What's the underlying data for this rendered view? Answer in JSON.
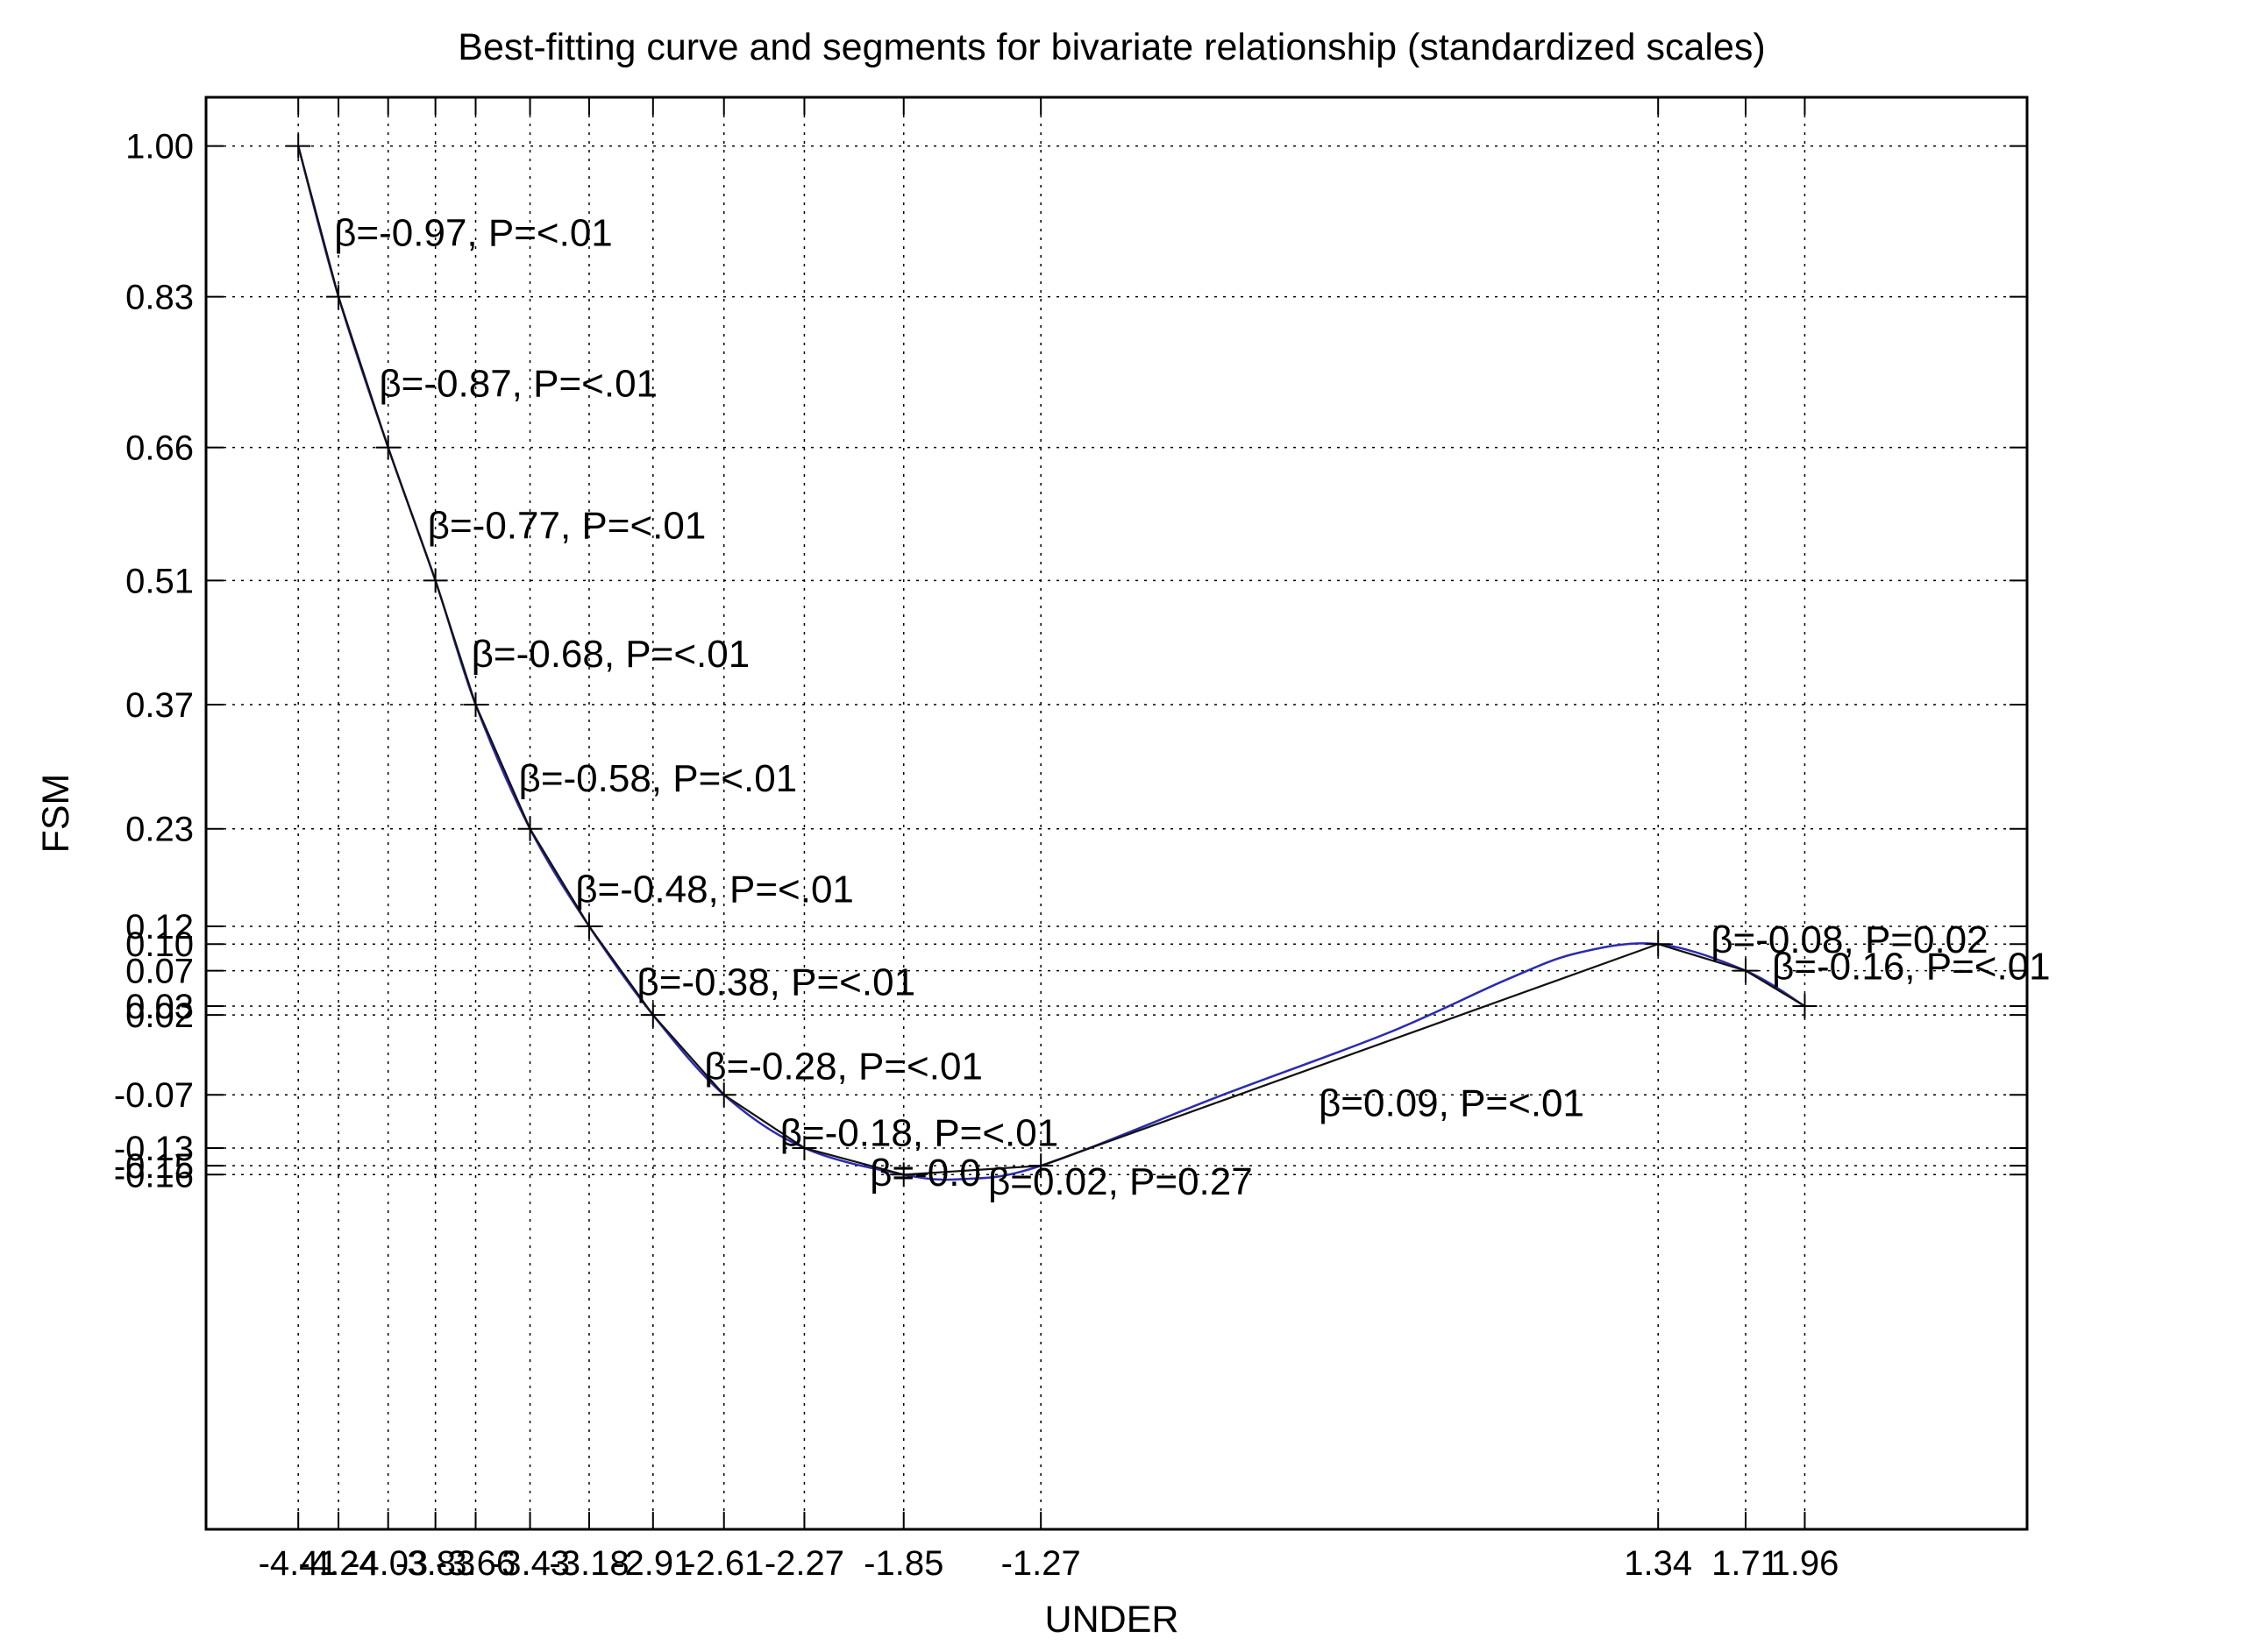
{
  "chart_data": {
    "type": "line",
    "title": "Best-fitting curve and segments for bivariate relationship (standardized scales)",
    "xlabel": "UNDER",
    "ylabel": "FSM",
    "xlim": [
      -4.8,
      2.9
    ],
    "ylim": [
      -0.56,
      1.055
    ],
    "grid": true,
    "x_tick_labels": [
      "-4.41",
      "-4.24",
      "-4.03",
      "-3.83",
      "-3.66",
      "-3.43",
      "-3.18",
      "-2.91",
      "-2.61",
      "-2.27",
      "-1.85",
      "-1.27",
      "1.34",
      "1.71",
      "1.96"
    ],
    "x_ticks": [
      -4.41,
      -4.24,
      -4.03,
      -3.83,
      -3.66,
      -3.43,
      -3.18,
      -2.91,
      -2.61,
      -2.27,
      -1.85,
      -1.27,
      1.34,
      1.71,
      1.96
    ],
    "y_tick_labels": [
      "1.00",
      "0.83",
      "0.66",
      "0.51",
      "0.37",
      "0.23",
      "0.12",
      "0.10",
      "0.07",
      "0.03",
      "0.02",
      "-0.07",
      "-0.13",
      "-0.15",
      "-0.16"
    ],
    "y_ticks": [
      1.0,
      0.83,
      0.66,
      0.51,
      0.37,
      0.23,
      0.12,
      0.1,
      0.07,
      0.03,
      0.02,
      -0.07,
      -0.13,
      -0.15,
      -0.16
    ],
    "knots": [
      {
        "x": -4.41,
        "y": 1.0
      },
      {
        "x": -4.24,
        "y": 0.83
      },
      {
        "x": -4.03,
        "y": 0.66
      },
      {
        "x": -3.83,
        "y": 0.51
      },
      {
        "x": -3.66,
        "y": 0.37
      },
      {
        "x": -3.43,
        "y": 0.23
      },
      {
        "x": -3.18,
        "y": 0.12
      },
      {
        "x": -2.91,
        "y": 0.02
      },
      {
        "x": -2.61,
        "y": -0.07
      },
      {
        "x": -2.27,
        "y": -0.13
      },
      {
        "x": -1.85,
        "y": -0.16
      },
      {
        "x": -1.27,
        "y": -0.15
      },
      {
        "x": 1.34,
        "y": 0.1
      },
      {
        "x": 1.71,
        "y": 0.07
      },
      {
        "x": 1.96,
        "y": 0.03
      }
    ],
    "curve": [
      {
        "x": -4.41,
        "y": 1.0
      },
      {
        "x": -4.24,
        "y": 0.83
      },
      {
        "x": -4.03,
        "y": 0.66
      },
      {
        "x": -3.83,
        "y": 0.51
      },
      {
        "x": -3.66,
        "y": 0.37
      },
      {
        "x": -3.43,
        "y": 0.23
      },
      {
        "x": -3.18,
        "y": 0.12
      },
      {
        "x": -2.91,
        "y": 0.02
      },
      {
        "x": -2.61,
        "y": -0.07
      },
      {
        "x": -2.27,
        "y": -0.13
      },
      {
        "x": -1.85,
        "y": -0.16
      },
      {
        "x": -1.6,
        "y": -0.165
      },
      {
        "x": -1.27,
        "y": -0.15
      },
      {
        "x": -0.5,
        "y": -0.07
      },
      {
        "x": 0.2,
        "y": 0.0
      },
      {
        "x": 0.7,
        "y": 0.06
      },
      {
        "x": 1.0,
        "y": 0.09
      },
      {
        "x": 1.34,
        "y": 0.1
      },
      {
        "x": 1.71,
        "y": 0.07
      },
      {
        "x": 1.96,
        "y": 0.03
      }
    ],
    "segments": [
      {
        "x1": -4.41,
        "y1": 1.0,
        "x2": -4.24,
        "y2": 0.83,
        "label": "β=-0.97, P=<.01"
      },
      {
        "x1": -4.24,
        "y1": 0.83,
        "x2": -4.03,
        "y2": 0.66,
        "label": "β=-0.87, P=<.01"
      },
      {
        "x1": -4.03,
        "y1": 0.66,
        "x2": -3.83,
        "y2": 0.51,
        "label": "β=-0.77, P=<.01"
      },
      {
        "x1": -3.83,
        "y1": 0.51,
        "x2": -3.66,
        "y2": 0.37,
        "label": "β=-0.68, P=<.01"
      },
      {
        "x1": -3.66,
        "y1": 0.37,
        "x2": -3.43,
        "y2": 0.23,
        "label": "β=-0.58, P=<.01"
      },
      {
        "x1": -3.43,
        "y1": 0.23,
        "x2": -3.18,
        "y2": 0.12,
        "label": "β=-0.48, P=<.01"
      },
      {
        "x1": -3.18,
        "y1": 0.12,
        "x2": -2.91,
        "y2": 0.02,
        "label": "β=-0.38, P=<.01"
      },
      {
        "x1": -2.91,
        "y1": 0.02,
        "x2": -2.61,
        "y2": -0.07,
        "label": "β=-0.28, P=<.01"
      },
      {
        "x1": -2.61,
        "y1": -0.07,
        "x2": -2.27,
        "y2": -0.13,
        "label": "β=-0.18, P=<.01"
      },
      {
        "x1": -2.27,
        "y1": -0.13,
        "x2": -1.85,
        "y2": -0.16,
        "label": "β=-0.0"
      },
      {
        "x1": -1.85,
        "y1": -0.16,
        "x2": -1.27,
        "y2": -0.15,
        "label": "β=0.02, P=0.27"
      },
      {
        "x1": -1.27,
        "y1": -0.15,
        "x2": 1.34,
        "y2": 0.1,
        "label": "β=0.09, P=<.01"
      },
      {
        "x1": 1.34,
        "y1": 0.1,
        "x2": 1.71,
        "y2": 0.07,
        "label": "β=-0.08, P=0.02"
      },
      {
        "x1": 1.71,
        "y1": 0.07,
        "x2": 1.96,
        "y2": 0.03,
        "label": "β=-0.16, P=<.01"
      }
    ]
  }
}
